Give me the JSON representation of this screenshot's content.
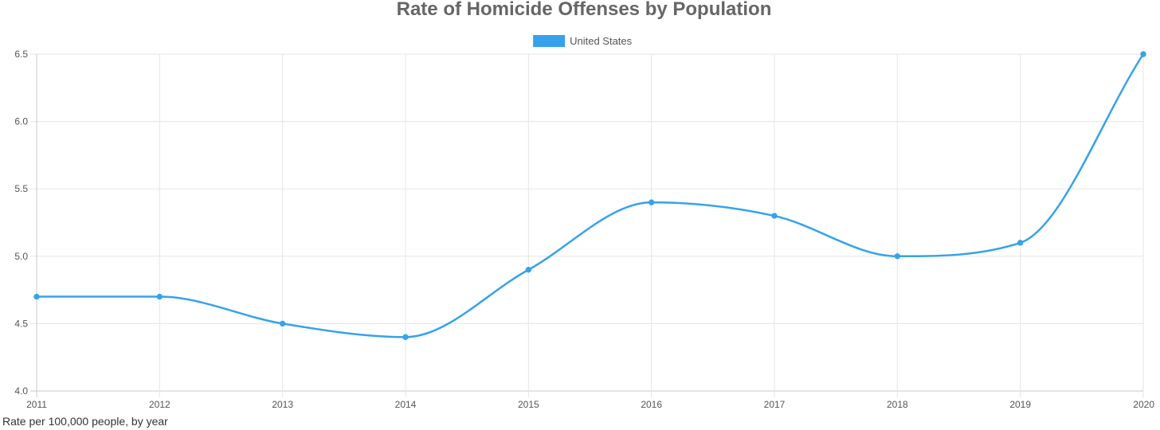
{
  "chart_data": {
    "type": "line",
    "title": "Rate of Homicide Offenses by Population",
    "x": [
      "2011",
      "2012",
      "2013",
      "2014",
      "2015",
      "2016",
      "2017",
      "2018",
      "2019",
      "2020"
    ],
    "series": [
      {
        "name": "United States",
        "values": [
          4.7,
          4.7,
          4.5,
          4.4,
          4.9,
          5.4,
          5.3,
          5.0,
          5.1,
          6.5
        ],
        "color": "#36A2EB"
      }
    ],
    "ylim": [
      4.0,
      6.5
    ],
    "yticks": [
      "4.0",
      "4.5",
      "5.0",
      "5.5",
      "6.0",
      "6.5"
    ],
    "xlabel": "",
    "ylabel": "",
    "grid": true,
    "legend_position": "top-center",
    "curve": "smooth"
  },
  "caption": "Rate per 100,000 people, by year"
}
